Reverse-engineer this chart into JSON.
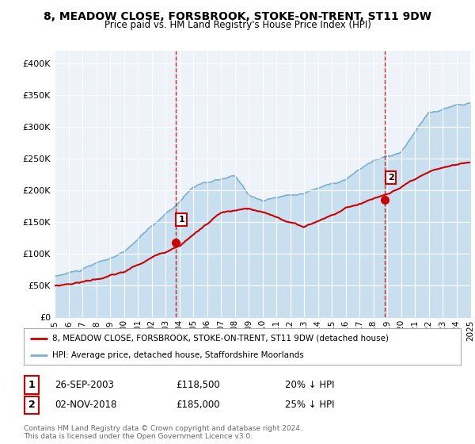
{
  "title": "8, MEADOW CLOSE, FORSBROOK, STOKE-ON-TRENT, ST11 9DW",
  "subtitle": "Price paid vs. HM Land Registry's House Price Index (HPI)",
  "property_label": "8, MEADOW CLOSE, FORSBROOK, STOKE-ON-TRENT, ST11 9DW (detached house)",
  "hpi_label": "HPI: Average price, detached house, Staffordshire Moorlands",
  "sale1_date": "26-SEP-2003",
  "sale1_price": 118500,
  "sale1_note": "20% ↓ HPI",
  "sale2_date": "02-NOV-2018",
  "sale2_price": 185000,
  "sale2_note": "25% ↓ HPI",
  "sale1_year": 2003.73,
  "sale2_year": 2018.84,
  "footer_line1": "Contains HM Land Registry data © Crown copyright and database right 2024.",
  "footer_line2": "This data is licensed under the Open Government Licence v3.0.",
  "property_color": "#cc0000",
  "hpi_color": "#7ab0d4",
  "hpi_fill_color": "#c8dff0",
  "background_color": "#eef3fa",
  "ylim_max": 420000,
  "xlim_start": 1995,
  "xlim_end": 2025
}
